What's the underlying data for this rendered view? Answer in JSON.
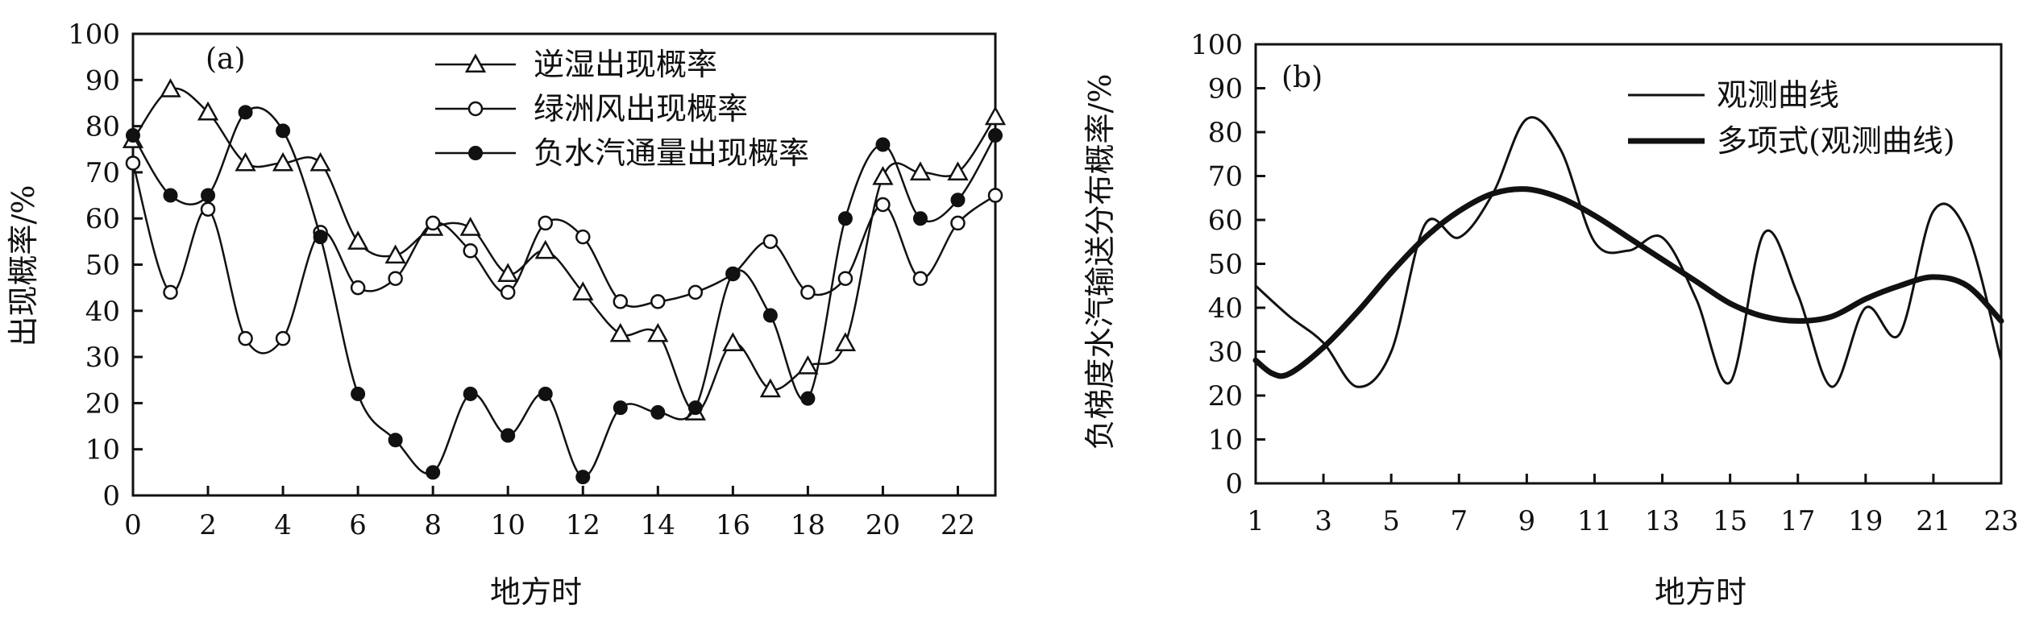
{
  "chart_data": [
    {
      "type": "line",
      "panel_label": "(a)",
      "xlabel": "地方时",
      "ylabel": "出现概率/%",
      "xlim": [
        0,
        23
      ],
      "ylim": [
        0,
        100
      ],
      "x_ticks": [
        "0",
        "2",
        "4",
        "6",
        "8",
        "10",
        "12",
        "14",
        "16",
        "18",
        "20",
        "22"
      ],
      "y_ticks": [
        "0",
        "10",
        "20",
        "30",
        "40",
        "50",
        "60",
        "70",
        "80",
        "90",
        "100"
      ],
      "legend_position": "top-right",
      "x": [
        0,
        1,
        2,
        3,
        4,
        5,
        6,
        7,
        8,
        9,
        10,
        11,
        12,
        13,
        14,
        15,
        16,
        17,
        18,
        19,
        20,
        21,
        22,
        23
      ],
      "series": [
        {
          "name": "逆湿出现概率",
          "marker": "triangle-open",
          "values": [
            77,
            88,
            83,
            72,
            72,
            72,
            55,
            52,
            58,
            58,
            48,
            53,
            44,
            35,
            35,
            18,
            33,
            23,
            28,
            33,
            69,
            70,
            70,
            82
          ]
        },
        {
          "name": "绿洲风出现概率",
          "marker": "circle-open",
          "values": [
            72,
            44,
            62,
            34,
            34,
            57,
            45,
            47,
            59,
            53,
            44,
            59,
            56,
            42,
            42,
            44,
            48,
            55,
            44,
            47,
            63,
            47,
            59,
            65
          ]
        },
        {
          "name": "负水汽通量出现概率",
          "marker": "circle-filled",
          "values": [
            78,
            65,
            65,
            83,
            79,
            56,
            22,
            12,
            5,
            22,
            13,
            22,
            4,
            19,
            18,
            19,
            48,
            39,
            21,
            60,
            76,
            60,
            64,
            78
          ]
        }
      ]
    },
    {
      "type": "line",
      "panel_label": "(b)",
      "xlabel": "地方时",
      "ylabel": "负梯度水汽输送分布概率/%",
      "xlim": [
        1,
        23
      ],
      "ylim": [
        0,
        100
      ],
      "x_ticks": [
        "1",
        "3",
        "5",
        "7",
        "9",
        "11",
        "13",
        "15",
        "17",
        "19",
        "21",
        "23"
      ],
      "y_ticks": [
        "0",
        "10",
        "20",
        "30",
        "40",
        "50",
        "60",
        "70",
        "80",
        "90",
        "100"
      ],
      "legend_position": "top-right",
      "series": [
        {
          "name": "观测曲线",
          "x": [
            1,
            2,
            3,
            4,
            5,
            6,
            7,
            8,
            9,
            10,
            11,
            12,
            13,
            14,
            15,
            16,
            17,
            18,
            19,
            20,
            21,
            22,
            23
          ],
          "values": [
            45,
            38,
            32,
            22,
            30,
            59,
            56,
            66,
            83,
            76,
            55,
            53,
            56,
            42,
            23,
            57,
            43,
            22,
            40,
            34,
            62,
            57,
            28
          ]
        },
        {
          "name": "多项式(观测曲线)",
          "x": [
            1,
            1.5,
            2,
            3,
            4,
            5,
            6,
            7,
            8,
            9,
            10,
            11,
            12,
            13,
            14,
            15,
            16,
            17,
            18,
            19,
            20,
            21,
            22,
            23
          ],
          "values": [
            28,
            25,
            25,
            31,
            39,
            48,
            56,
            62,
            66,
            67,
            65,
            61,
            56,
            51,
            46,
            41,
            38,
            37,
            38,
            42,
            45,
            47,
            45,
            37
          ]
        }
      ]
    }
  ]
}
